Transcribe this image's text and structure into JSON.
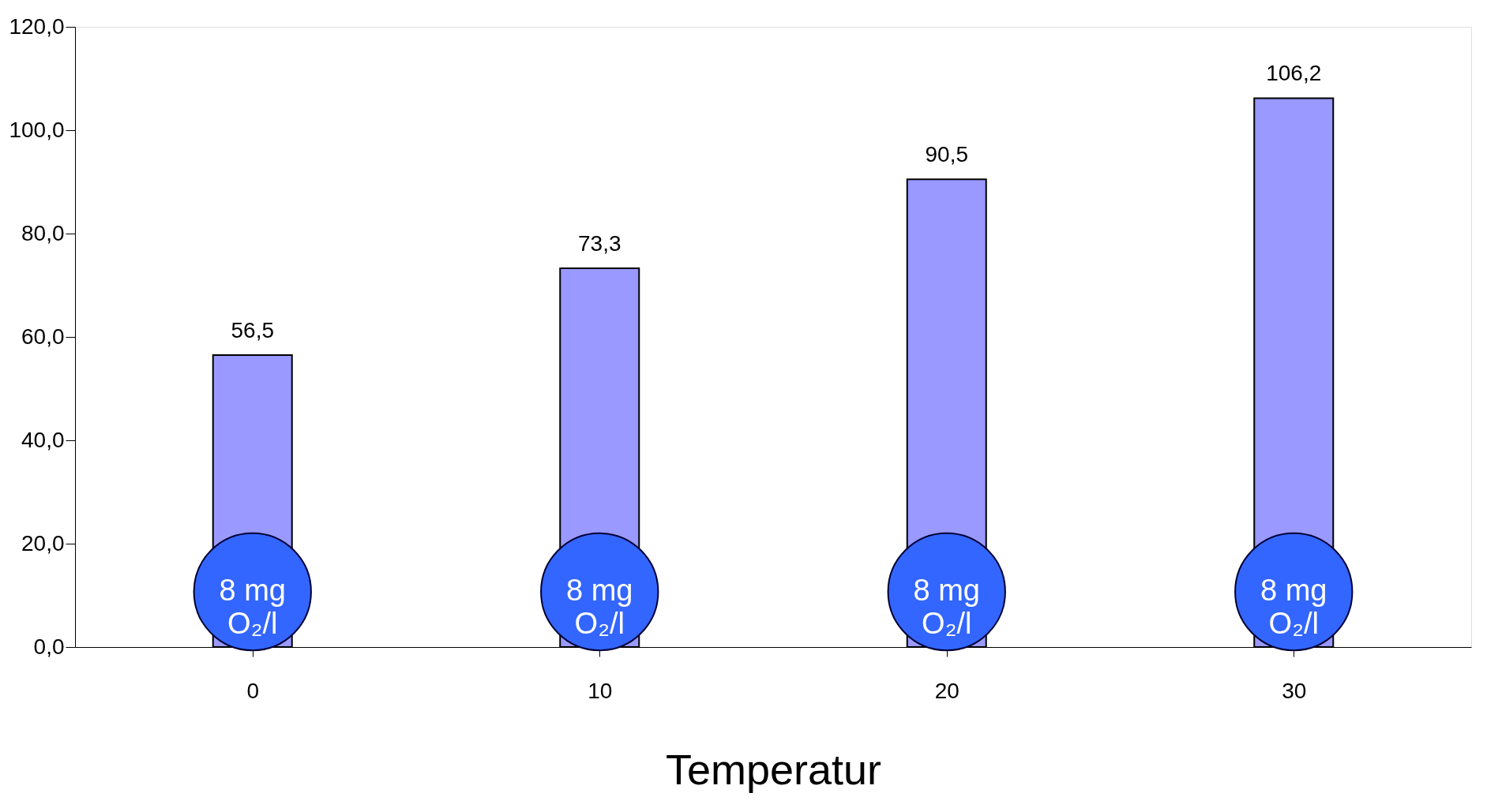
{
  "chart_data": {
    "type": "bar",
    "xlabel": "Temperatur",
    "categories": [
      "0",
      "10",
      "20",
      "30"
    ],
    "values": [
      56.5,
      73.3,
      90.5,
      106.2
    ],
    "color": "#9999ff",
    "value_labels": [
      "56,5",
      "73,3",
      "90,5",
      "106,2"
    ],
    "ylim": [
      0,
      120
    ],
    "yticks": [
      {
        "value": 0,
        "label": "0,0"
      },
      {
        "value": 20,
        "label": "20,0"
      },
      {
        "value": 40,
        "label": "40,0"
      },
      {
        "value": 60,
        "label": "60,0"
      },
      {
        "value": 80,
        "label": "80,0"
      },
      {
        "value": 100,
        "label": "100,0"
      },
      {
        "value": 120,
        "label": "120,0"
      }
    ],
    "grid": false,
    "annotations": [
      "8 mg\nO₂/l",
      "8 mg\nO₂/l",
      "8 mg\nO₂/l",
      "8 mg\nO₂/l"
    ]
  }
}
